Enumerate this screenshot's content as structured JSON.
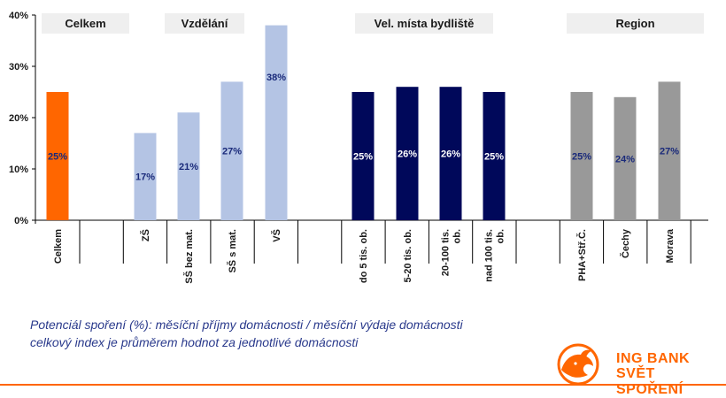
{
  "chart_data": {
    "type": "bar",
    "ylim": [
      0,
      40
    ],
    "y_ticks": [
      "0%",
      "10%",
      "20%",
      "30%",
      "40%"
    ],
    "grid": false,
    "groups": [
      "Celkem",
      "Vzdělání",
      "Vel. místa bydliště",
      "Region"
    ],
    "categories": [
      "Celkem",
      "ZŠ",
      "SŠ bez mat.",
      "SŠ s mat.",
      "VŠ",
      "do 5 tis. ob.",
      "5-20 tis. ob.",
      "20-100 tis. ob.",
      "nad 100 tis. ob.",
      "PHA+Stř.Č.",
      "Čechy",
      "Morava"
    ],
    "values": [
      25,
      17,
      21,
      27,
      38,
      25,
      26,
      26,
      25,
      25,
      24,
      27
    ],
    "value_labels": [
      "25%",
      "17%",
      "21%",
      "27%",
      "38%",
      "25%",
      "26%",
      "26%",
      "25%",
      "25%",
      "24%",
      "27%"
    ],
    "bar_colors": [
      "#ff6600",
      "#b4c4e4",
      "#b4c4e4",
      "#b4c4e4",
      "#b4c4e4",
      "#00085a",
      "#00085a",
      "#00085a",
      "#00085a",
      "#999999",
      "#999999",
      "#999999"
    ]
  },
  "footnote": {
    "line1": "Potenciál spoření (%): měsíční příjmy domácnosti / měsíční výdaje domácnosti",
    "line2": "celkový index je průměrem hodnot za jednotlivé domácnosti"
  },
  "brand": {
    "line1": "ING BANK",
    "line2": "SVĚT SPOŘENÍ",
    "logo_name": "ing-lion-logo",
    "color": "#ff6600"
  }
}
